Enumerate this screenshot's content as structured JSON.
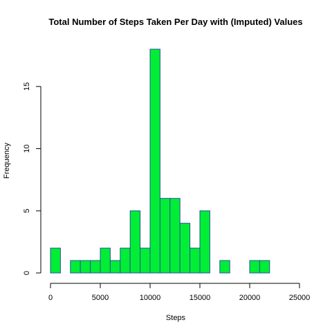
{
  "chart_data": {
    "type": "bar",
    "subtype": "histogram",
    "title": "Total Number of Steps Taken Per Day with (Imputed) Values",
    "xlabel": "Steps",
    "ylabel": "Frequency",
    "bin_width": 1000,
    "bins": [
      {
        "x0": 0,
        "x1": 1000,
        "count": 2
      },
      {
        "x0": 1000,
        "x1": 2000,
        "count": 0
      },
      {
        "x0": 2000,
        "x1": 3000,
        "count": 1
      },
      {
        "x0": 3000,
        "x1": 4000,
        "count": 1
      },
      {
        "x0": 4000,
        "x1": 5000,
        "count": 1
      },
      {
        "x0": 5000,
        "x1": 6000,
        "count": 2
      },
      {
        "x0": 6000,
        "x1": 7000,
        "count": 1
      },
      {
        "x0": 7000,
        "x1": 8000,
        "count": 2
      },
      {
        "x0": 8000,
        "x1": 9000,
        "count": 5
      },
      {
        "x0": 9000,
        "x1": 10000,
        "count": 2
      },
      {
        "x0": 10000,
        "x1": 11000,
        "count": 18
      },
      {
        "x0": 11000,
        "x1": 12000,
        "count": 6
      },
      {
        "x0": 12000,
        "x1": 13000,
        "count": 6
      },
      {
        "x0": 13000,
        "x1": 14000,
        "count": 4
      },
      {
        "x0": 14000,
        "x1": 15000,
        "count": 2
      },
      {
        "x0": 15000,
        "x1": 16000,
        "count": 5
      },
      {
        "x0": 16000,
        "x1": 17000,
        "count": 0
      },
      {
        "x0": 17000,
        "x1": 18000,
        "count": 1
      },
      {
        "x0": 18000,
        "x1": 19000,
        "count": 0
      },
      {
        "x0": 19000,
        "x1": 20000,
        "count": 0
      },
      {
        "x0": 20000,
        "x1": 21000,
        "count": 1
      },
      {
        "x0": 21000,
        "x1": 22000,
        "count": 1
      }
    ],
    "xlim": [
      0,
      25000
    ],
    "ylim": [
      0,
      18
    ],
    "xticks": [
      0,
      5000,
      10000,
      15000,
      20000,
      25000
    ],
    "xtick_labels": [
      "0",
      "5000",
      "10000",
      "15000",
      "20000",
      "25000"
    ],
    "yticks": [
      0,
      5,
      10,
      15
    ],
    "ytick_labels": [
      "0",
      "5",
      "10",
      "15"
    ],
    "grid": false,
    "legend": "none",
    "colors": {
      "bar_fill": "#00ee33",
      "bar_stroke": "#2b4faa",
      "axis": "#000000"
    }
  }
}
